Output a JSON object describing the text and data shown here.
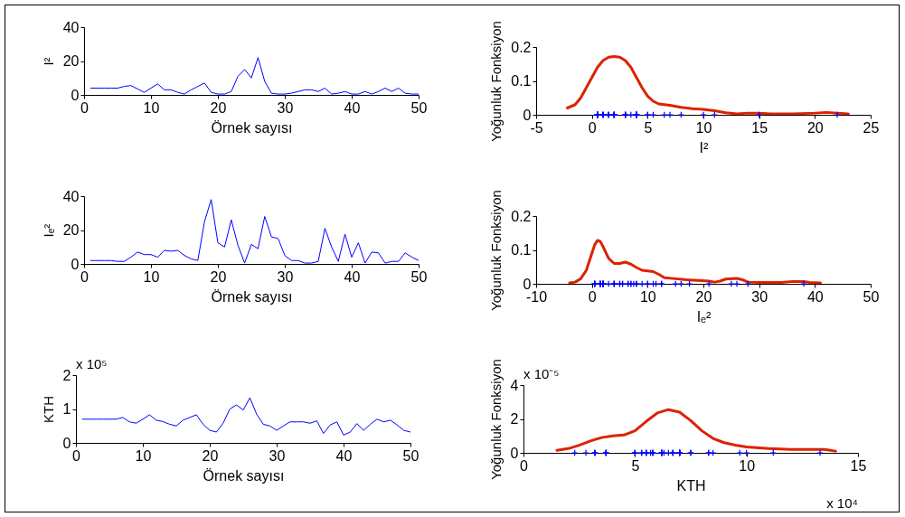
{
  "chart_data": [
    {
      "type": "line",
      "ylabel": "I²",
      "xlabel": "Örnek sayısı",
      "xlim": [
        0,
        50
      ],
      "xticks": [
        0,
        10,
        20,
        30,
        40,
        50
      ],
      "ylim": [
        0,
        40
      ],
      "yticks": [
        0,
        20,
        40
      ],
      "grid": false,
      "marker": "none",
      "series": [
        {
          "color": "#0000ff",
          "x": [
            1,
            2,
            3,
            4,
            5,
            6,
            7,
            8,
            9,
            10,
            11,
            12,
            13,
            14,
            15,
            16,
            17,
            18,
            19,
            20,
            21,
            22,
            23,
            24,
            25,
            26,
            27,
            28,
            29,
            30,
            31,
            32,
            33,
            34,
            35,
            36,
            37,
            38,
            39,
            40,
            41,
            42,
            43,
            44,
            45,
            46,
            47,
            48,
            49,
            50
          ],
          "values": [
            4,
            4,
            4,
            4,
            4,
            5,
            5.5,
            3.5,
            1.5,
            4,
            6.5,
            3,
            3,
            1.5,
            0.5,
            3,
            5,
            7,
            1.5,
            0.5,
            0.5,
            2,
            11,
            15,
            10,
            22,
            8,
            1,
            0.5,
            0.5,
            1,
            2,
            3,
            3,
            2,
            4,
            0.5,
            1,
            2,
            0.5,
            0.5,
            2,
            0.5,
            2,
            4,
            2,
            4,
            1,
            0.5,
            0.5
          ]
        }
      ]
    },
    {
      "type": "line",
      "ylabel": "Yoğunluk Fonksiyon",
      "xlabel": "I²",
      "xlim": [
        -5,
        25
      ],
      "xticks": [
        -5,
        0,
        5,
        10,
        15,
        20,
        25
      ],
      "ylim": [
        0,
        0.2
      ],
      "yticks": [
        0,
        0.1,
        0.2
      ],
      "grid": false,
      "series": [
        {
          "type": "line",
          "color": "#dd2200",
          "marker": "none",
          "x": [
            -2.2,
            -1.5,
            -1,
            -0.5,
            0,
            0.5,
            1,
            1.5,
            2,
            2.5,
            3,
            3.5,
            4,
            4.5,
            5,
            5.5,
            6,
            7,
            8,
            9,
            10,
            11,
            12,
            13,
            14,
            15,
            16,
            18,
            20,
            21,
            22,
            23
          ],
          "values": [
            0.02,
            0.03,
            0.05,
            0.08,
            0.11,
            0.14,
            0.16,
            0.17,
            0.172,
            0.17,
            0.16,
            0.14,
            0.11,
            0.08,
            0.055,
            0.04,
            0.032,
            0.028,
            0.022,
            0.018,
            0.016,
            0.012,
            0.006,
            0.003,
            0.005,
            0.005,
            0.003,
            0.003,
            0.005,
            0.007,
            0.005,
            0.003
          ]
        },
        {
          "type": "scatter",
          "color": "#0000ff",
          "marker": "cross",
          "x": [
            4,
            4,
            4,
            4,
            4,
            5,
            5.5,
            3.5,
            1.5,
            4,
            6.5,
            3,
            3,
            1.5,
            0.5,
            3,
            5,
            7,
            1.5,
            0.5,
            0.5,
            2,
            11,
            15,
            10,
            22,
            8,
            1,
            0.5,
            0.5,
            1,
            2,
            3,
            3,
            2,
            4,
            0.5,
            1,
            2,
            0.5,
            0.5,
            2,
            0.5,
            2,
            4,
            2,
            4,
            1,
            0.5,
            0.5
          ],
          "values": [
            0,
            0,
            0,
            0,
            0,
            0,
            0,
            0,
            0,
            0,
            0,
            0,
            0,
            0,
            0,
            0,
            0,
            0,
            0,
            0,
            0,
            0,
            0,
            0,
            0,
            0,
            0,
            0,
            0,
            0,
            0,
            0,
            0,
            0,
            0,
            0,
            0,
            0,
            0,
            0,
            0,
            0,
            0,
            0,
            0,
            0,
            0,
            0,
            0,
            0
          ]
        }
      ]
    },
    {
      "type": "line",
      "ylabel": "Iₑ²",
      "xlabel": "Örnek sayısı",
      "xlim": [
        0,
        50
      ],
      "xticks": [
        0,
        10,
        20,
        30,
        40,
        50
      ],
      "ylim": [
        0,
        40
      ],
      "yticks": [
        0,
        20,
        40
      ],
      "grid": false,
      "marker": "none",
      "series": [
        {
          "color": "#0000ff",
          "x": [
            1,
            2,
            3,
            4,
            5,
            6,
            7,
            8,
            9,
            10,
            11,
            12,
            13,
            14,
            15,
            16,
            17,
            18,
            19,
            20,
            21,
            22,
            23,
            24,
            25,
            26,
            27,
            28,
            29,
            30,
            31,
            32,
            33,
            34,
            35,
            36,
            37,
            38,
            39,
            40,
            41,
            42,
            43,
            44,
            45,
            46,
            47,
            48,
            49,
            50
          ],
          "values": [
            2,
            2,
            2,
            2,
            1.5,
            1.5,
            4,
            7,
            5.5,
            5.5,
            4,
            8,
            7.5,
            8,
            5,
            3,
            2,
            25,
            38,
            12.5,
            10,
            26,
            11,
            0.5,
            11.5,
            9,
            28,
            16,
            15,
            5,
            2,
            2,
            0.5,
            0.5,
            1.5,
            21,
            10,
            1.5,
            17.5,
            4,
            12.5,
            0.5,
            7,
            6.5,
            0.5,
            1.5,
            1.5,
            6.5,
            4,
            2
          ]
        }
      ]
    },
    {
      "type": "line",
      "ylabel": "Yoğunluk Fonksiyon",
      "xlabel": "Iₑ²",
      "xlim": [
        -10,
        50
      ],
      "xticks": [
        -10,
        0,
        10,
        20,
        30,
        40,
        50
      ],
      "ylim": [
        0,
        0.2
      ],
      "yticks": [
        0,
        0.1,
        0.2
      ],
      "grid": false,
      "series": [
        {
          "type": "line",
          "color": "#dd2200",
          "marker": "none",
          "x": [
            -4,
            -3,
            -2,
            -1,
            0,
            0.5,
            1,
            1.5,
            2,
            3,
            4,
            5,
            6,
            7,
            8,
            9,
            10,
            11,
            12,
            13,
            15,
            17,
            19,
            21,
            22,
            23,
            24,
            26,
            27,
            28,
            30,
            34,
            36,
            38,
            39,
            41
          ],
          "values": [
            0.003,
            0.005,
            0.015,
            0.04,
            0.09,
            0.115,
            0.128,
            0.125,
            0.11,
            0.075,
            0.06,
            0.06,
            0.064,
            0.058,
            0.048,
            0.04,
            0.038,
            0.036,
            0.028,
            0.018,
            0.015,
            0.012,
            0.01,
            0.008,
            0.005,
            0.008,
            0.014,
            0.016,
            0.012,
            0.005,
            0.004,
            0.004,
            0.007,
            0.007,
            0.004,
            0.003
          ]
        },
        {
          "type": "scatter",
          "color": "#0000ff",
          "marker": "cross",
          "x": [
            2,
            2,
            2,
            2,
            1.5,
            1.5,
            4,
            7,
            5.5,
            5.5,
            4,
            8,
            7.5,
            8,
            5,
            3,
            2,
            25,
            38,
            12.5,
            10,
            26,
            11,
            0.5,
            11.5,
            9,
            28,
            16,
            15,
            5,
            2,
            2,
            0.5,
            0.5,
            1.5,
            21,
            10,
            1.5,
            17.5,
            4,
            12.5,
            0.5,
            7,
            6.5,
            0.5,
            1.5,
            1.5,
            6.5,
            4,
            2
          ],
          "values": [
            0,
            0,
            0,
            0,
            0,
            0,
            0,
            0,
            0,
            0,
            0,
            0,
            0,
            0,
            0,
            0,
            0,
            0,
            0,
            0,
            0,
            0,
            0,
            0,
            0,
            0,
            0,
            0,
            0,
            0,
            0,
            0,
            0,
            0,
            0,
            0,
            0,
            0,
            0,
            0,
            0,
            0,
            0,
            0,
            0,
            0,
            0,
            0,
            0,
            0
          ]
        }
      ]
    },
    {
      "type": "line",
      "ylabel": "KTH",
      "xlabel": "Örnek sayısı",
      "xlim": [
        0,
        50
      ],
      "xticks": [
        0,
        10,
        20,
        30,
        40,
        50
      ],
      "ylim": [
        0,
        2
      ],
      "yticks": [
        0,
        1,
        2
      ],
      "grid": false,
      "marker": "none",
      "annotations": [
        "x 10⁵"
      ],
      "series": [
        {
          "color": "#0000ff",
          "x": [
            1,
            2,
            3,
            4,
            5,
            6,
            7,
            8,
            9,
            10,
            11,
            12,
            13,
            14,
            15,
            16,
            17,
            18,
            19,
            20,
            21,
            22,
            23,
            24,
            25,
            26,
            27,
            28,
            29,
            30,
            31,
            32,
            33,
            34,
            35,
            36,
            37,
            38,
            39,
            40,
            41,
            42,
            43,
            44,
            45,
            46,
            47,
            48,
            49,
            50
          ],
          "values": [
            0.7,
            0.7,
            0.7,
            0.7,
            0.7,
            0.7,
            0.75,
            0.62,
            0.58,
            0.7,
            0.83,
            0.67,
            0.63,
            0.55,
            0.5,
            0.67,
            0.75,
            0.83,
            0.55,
            0.37,
            0.32,
            0.58,
            1.0,
            1.12,
            0.97,
            1.33,
            0.85,
            0.55,
            0.5,
            0.37,
            0.5,
            0.62,
            0.62,
            0.62,
            0.58,
            0.65,
            0.28,
            0.53,
            0.62,
            0.23,
            0.32,
            0.57,
            0.37,
            0.55,
            0.7,
            0.62,
            0.67,
            0.53,
            0.37,
            0.32
          ]
        }
      ]
    },
    {
      "type": "line",
      "ylabel": "Yoğunluk Fonksiyon",
      "xlabel": "KTH",
      "xlim": [
        0,
        15
      ],
      "xticks": [
        0,
        5,
        10,
        15
      ],
      "ylim": [
        0,
        4
      ],
      "yticks": [
        0,
        2,
        4
      ],
      "grid": false,
      "annotations": [
        "x 10⁻⁵",
        "x 10⁴"
      ],
      "series": [
        {
          "type": "line",
          "color": "#dd2200",
          "marker": "none",
          "x": [
            1.5,
            2,
            2.5,
            3,
            3.5,
            4,
            4.5,
            5,
            5.5,
            6,
            6.5,
            7,
            7.5,
            8,
            8.5,
            9,
            9.5,
            10,
            11,
            12,
            13,
            13.5,
            14
          ],
          "values": [
            0.15,
            0.25,
            0.45,
            0.7,
            0.9,
            1.0,
            1.05,
            1.3,
            1.85,
            2.35,
            2.55,
            2.4,
            1.9,
            1.3,
            0.85,
            0.6,
            0.45,
            0.35,
            0.25,
            0.2,
            0.2,
            0.2,
            0.1
          ]
        },
        {
          "type": "scatter",
          "color": "#0000ff",
          "marker": "cross",
          "x": [
            7,
            7,
            7,
            7,
            7,
            7,
            7.5,
            6.2,
            5.8,
            7,
            8.3,
            6.7,
            6.3,
            5.5,
            5,
            6.7,
            7.5,
            8.3,
            5.5,
            3.7,
            3.2,
            5.8,
            10,
            11.2,
            9.7,
            13.3,
            8.5,
            5.5,
            5,
            3.7,
            5,
            6.2,
            6.2,
            6.2,
            5.8,
            6.5,
            2.8,
            5.3,
            6.2,
            2.3,
            3.2,
            5.7,
            3.7,
            5.5,
            7,
            6.2,
            6.7,
            5.3,
            3.7,
            3.2
          ],
          "values": [
            0,
            0,
            0,
            0,
            0,
            0,
            0,
            0,
            0,
            0,
            0,
            0,
            0,
            0,
            0,
            0,
            0,
            0,
            0,
            0,
            0,
            0,
            0,
            0,
            0,
            0,
            0,
            0,
            0,
            0,
            0,
            0,
            0,
            0,
            0,
            0,
            0,
            0,
            0,
            0,
            0,
            0,
            0,
            0,
            0,
            0,
            0,
            0,
            0,
            0
          ]
        }
      ]
    }
  ]
}
